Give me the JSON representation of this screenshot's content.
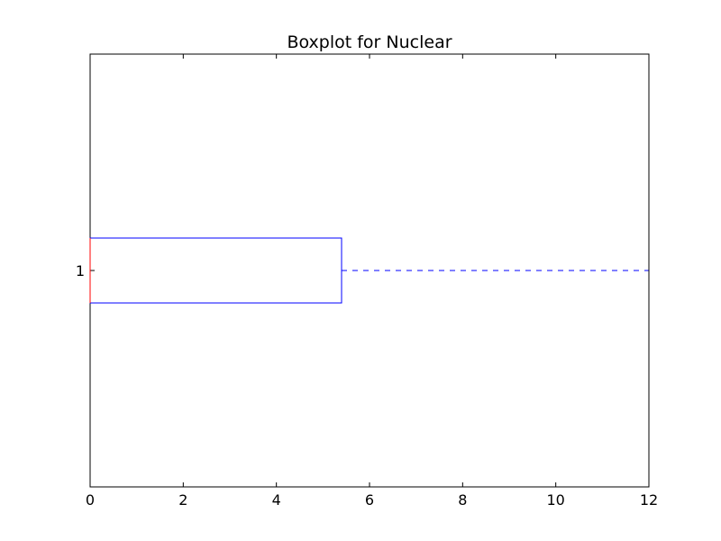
{
  "chart_data": {
    "type": "boxplot",
    "orientation": "horizontal",
    "title": "Boxplot for Nuclear",
    "xlim": [
      0,
      12
    ],
    "x_ticks": [
      0,
      2,
      4,
      6,
      8,
      10,
      12
    ],
    "y_ticks": [
      "1"
    ],
    "grid": false,
    "series": [
      {
        "category": "1",
        "whisker_low": 0,
        "q1": 0,
        "median": 0,
        "q3": 5.4,
        "whisker_high": 12,
        "color": "#0000ff"
      }
    ]
  }
}
